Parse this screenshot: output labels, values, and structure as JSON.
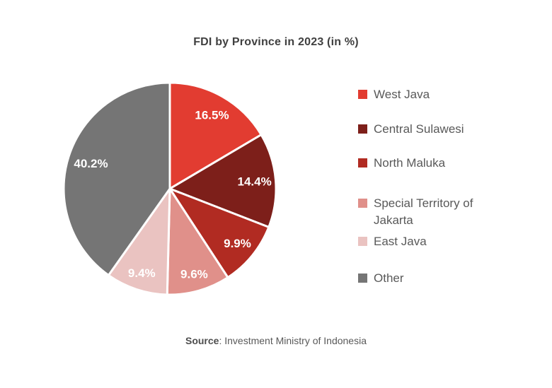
{
  "title": "FDI by Province in 2023 (in %)",
  "source": {
    "label": "Source",
    "text": ": Investment Ministry of Indonesia"
  },
  "colors": {
    "background": "#ffffff",
    "title_text": "#404040",
    "legend_text": "#595959",
    "slice_label_text": "#ffffff",
    "slice_divider": "#ffffff"
  },
  "chart_data": {
    "type": "pie",
    "title": "FDI by Province in 2023 (in %)",
    "direction": "clockwise",
    "start_angle_deg": 0,
    "legend_position": "right",
    "data_labels": "percent-inside",
    "slices": [
      {
        "label": "West Java",
        "value": 16.5,
        "display": "16.5%",
        "color": "#e23c31"
      },
      {
        "label": "Central Sulawesi",
        "value": 14.4,
        "display": "14.4%",
        "color": "#7d1f1a"
      },
      {
        "label": "North Maluka",
        "value": 9.9,
        "display": "9.9%",
        "color": "#b12b22"
      },
      {
        "label": "Special Territory of Jakarta",
        "value": 9.6,
        "display": "9.6%",
        "color": "#e0908a"
      },
      {
        "label": "East Java",
        "value": 9.4,
        "display": "9.4%",
        "color": "#eac3c1"
      },
      {
        "label": "Other",
        "value": 40.2,
        "display": "40.2%",
        "color": "#757575"
      }
    ]
  }
}
